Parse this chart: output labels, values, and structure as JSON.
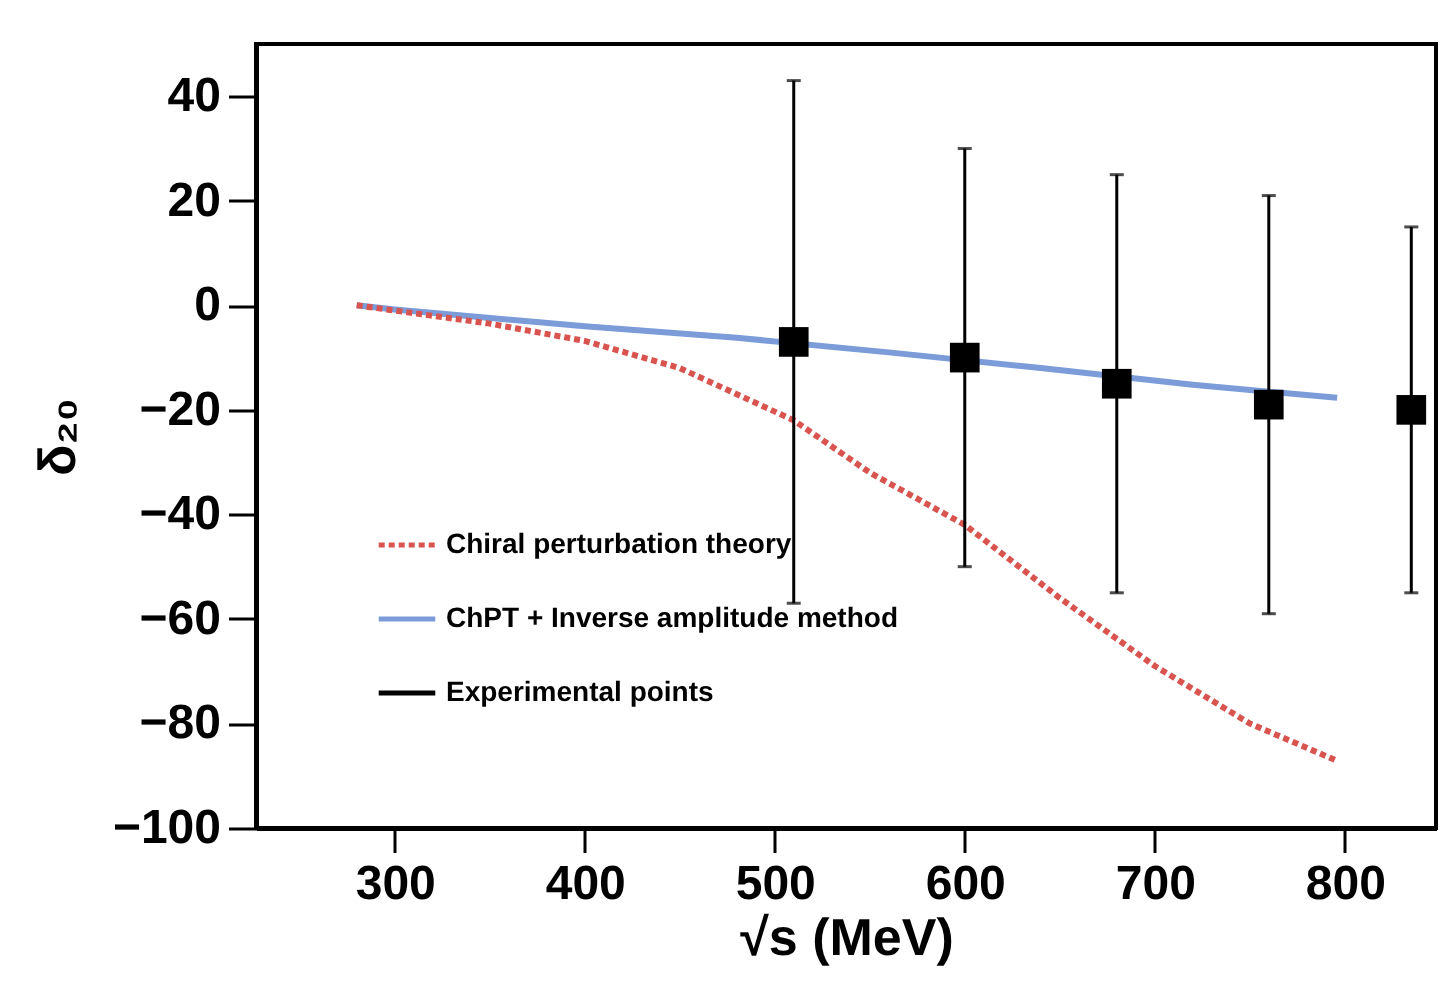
{
  "chart_data": {
    "type": "line",
    "xlabel": "√s (MeV)",
    "ylabel": "δ₂₀",
    "xlim": [
      227,
      848
    ],
    "xticks": [
      300,
      400,
      500,
      600,
      700,
      800
    ],
    "ylim": [
      -100,
      50
    ],
    "yticks": [
      -100,
      -80,
      -60,
      -40,
      -20,
      0,
      20,
      40
    ],
    "grid": false,
    "legend": "bottom left",
    "series": [
      {
        "name": "Chiral perturbation theory",
        "type": "line",
        "color": "#d9534f",
        "line_style": "dotted",
        "marker": "none",
        "x": [
          280,
          300,
          350,
          400,
          450,
          510,
          550,
          600,
          650,
          700,
          750,
          795
        ],
        "values": [
          0,
          -1,
          -3.5,
          -6.8,
          -12,
          -22,
          -32,
          -42,
          -56,
          -69,
          -80,
          -87
        ]
      },
      {
        "name": "ChPT + Inverse amplitude method",
        "type": "line",
        "color": "#7b9bd9",
        "line_style": "solid",
        "marker": "none",
        "x": [
          280,
          300,
          400,
          480,
          560,
          640,
          720,
          796
        ],
        "values": [
          0,
          -0.8,
          -4,
          -6.2,
          -9,
          -12,
          -15.2,
          -17.7
        ]
      },
      {
        "name": "Experimental points",
        "type": "scatter",
        "color": "#000000",
        "marker": "square",
        "x": [
          510,
          600,
          680,
          760,
          835
        ],
        "values": [
          -7,
          -10,
          -15,
          -19,
          -20
        ],
        "errors": [
          [
            -57,
            43
          ],
          [
            -50,
            30
          ],
          [
            -55,
            25
          ],
          [
            -59,
            21
          ],
          [
            -55,
            15
          ]
        ]
      }
    ]
  }
}
